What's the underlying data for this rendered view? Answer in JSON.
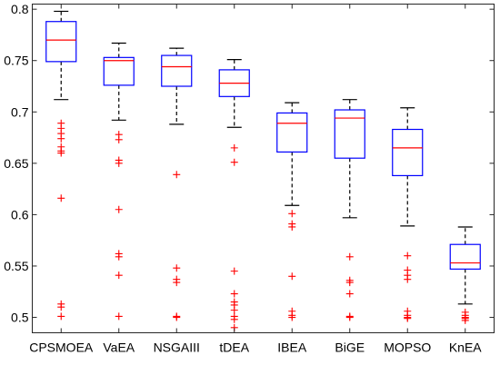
{
  "chart_data": {
    "type": "box",
    "title": "",
    "xlabel": "",
    "ylabel": "",
    "ylim": [
      0.485,
      0.805
    ],
    "yticks": [
      0.5,
      0.55,
      0.6,
      0.65,
      0.7,
      0.75,
      0.8
    ],
    "grid": false,
    "legend": "none",
    "colors": {
      "box": "#0000ff",
      "median": "#ff0000",
      "whisker": "#000000",
      "outlier": "#ff0000",
      "axis": "#262626"
    },
    "categories": [
      "CPSMOEA",
      "VaEA",
      "NSGAIII",
      "tDEA",
      "IBEA",
      "BiGE",
      "MOPSO",
      "KnEA"
    ],
    "boxes": [
      {
        "name": "CPSMOEA",
        "whislo": 0.712,
        "q1": 0.749,
        "med": 0.77,
        "q3": 0.788,
        "whishi": 0.798,
        "fliers": [
          0.689,
          0.684,
          0.679,
          0.674,
          0.666,
          0.662,
          0.66,
          0.616,
          0.513,
          0.51,
          0.501
        ]
      },
      {
        "name": "VaEA",
        "whislo": 0.692,
        "q1": 0.726,
        "med": 0.75,
        "q3": 0.753,
        "whishi": 0.767,
        "fliers": [
          0.678,
          0.673,
          0.653,
          0.65,
          0.605,
          0.562,
          0.559,
          0.541,
          0.501
        ]
      },
      {
        "name": "NSGAIII",
        "whislo": 0.688,
        "q1": 0.725,
        "med": 0.744,
        "q3": 0.755,
        "whishi": 0.762,
        "fliers": [
          0.639,
          0.548,
          0.537,
          0.534,
          0.501,
          0.5
        ]
      },
      {
        "name": "tDEA",
        "whislo": 0.685,
        "q1": 0.715,
        "med": 0.728,
        "q3": 0.741,
        "whishi": 0.751,
        "fliers": [
          0.665,
          0.651,
          0.545,
          0.523,
          0.515,
          0.512,
          0.507,
          0.501,
          0.498,
          0.49
        ]
      },
      {
        "name": "IBEA",
        "whislo": 0.609,
        "q1": 0.661,
        "med": 0.689,
        "q3": 0.699,
        "whishi": 0.709,
        "fliers": [
          0.601,
          0.591,
          0.588,
          0.54,
          0.506,
          0.502,
          0.5
        ]
      },
      {
        "name": "BiGE",
        "whislo": 0.597,
        "q1": 0.655,
        "med": 0.694,
        "q3": 0.702,
        "whishi": 0.712,
        "fliers": [
          0.559,
          0.536,
          0.534,
          0.523,
          0.501,
          0.5
        ]
      },
      {
        "name": "MOPSO",
        "whislo": 0.589,
        "q1": 0.638,
        "med": 0.665,
        "q3": 0.683,
        "whishi": 0.704,
        "fliers": [
          0.56,
          0.546,
          0.541,
          0.537,
          0.506,
          0.502,
          0.5,
          0.499
        ]
      },
      {
        "name": "KnEA",
        "whislo": 0.513,
        "q1": 0.547,
        "med": 0.553,
        "q3": 0.571,
        "whishi": 0.588,
        "fliers": [
          0.505,
          0.502,
          0.5,
          0.499,
          0.497
        ]
      }
    ]
  }
}
